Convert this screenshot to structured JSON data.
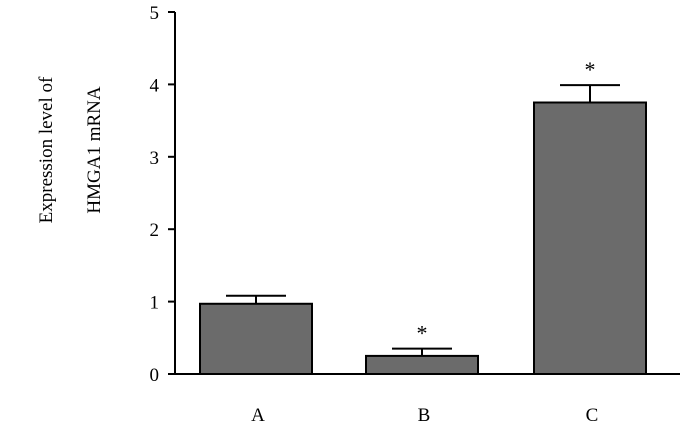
{
  "chart_data": {
    "type": "bar",
    "title": "",
    "xlabel": "",
    "ylabel_lines": [
      "Expression level of",
      "HMGA1 mRNA"
    ],
    "categories": [
      "A",
      "B",
      "C"
    ],
    "values": [
      0.97,
      0.25,
      3.75
    ],
    "error": [
      0.11,
      0.1,
      0.24
    ],
    "significance": [
      "",
      "*",
      "*"
    ],
    "ylim": [
      0,
      5
    ],
    "yticks": [
      "0",
      "1",
      "2",
      "3",
      "4",
      "5"
    ],
    "grid": false,
    "bar_color": "#6b6b6b"
  }
}
